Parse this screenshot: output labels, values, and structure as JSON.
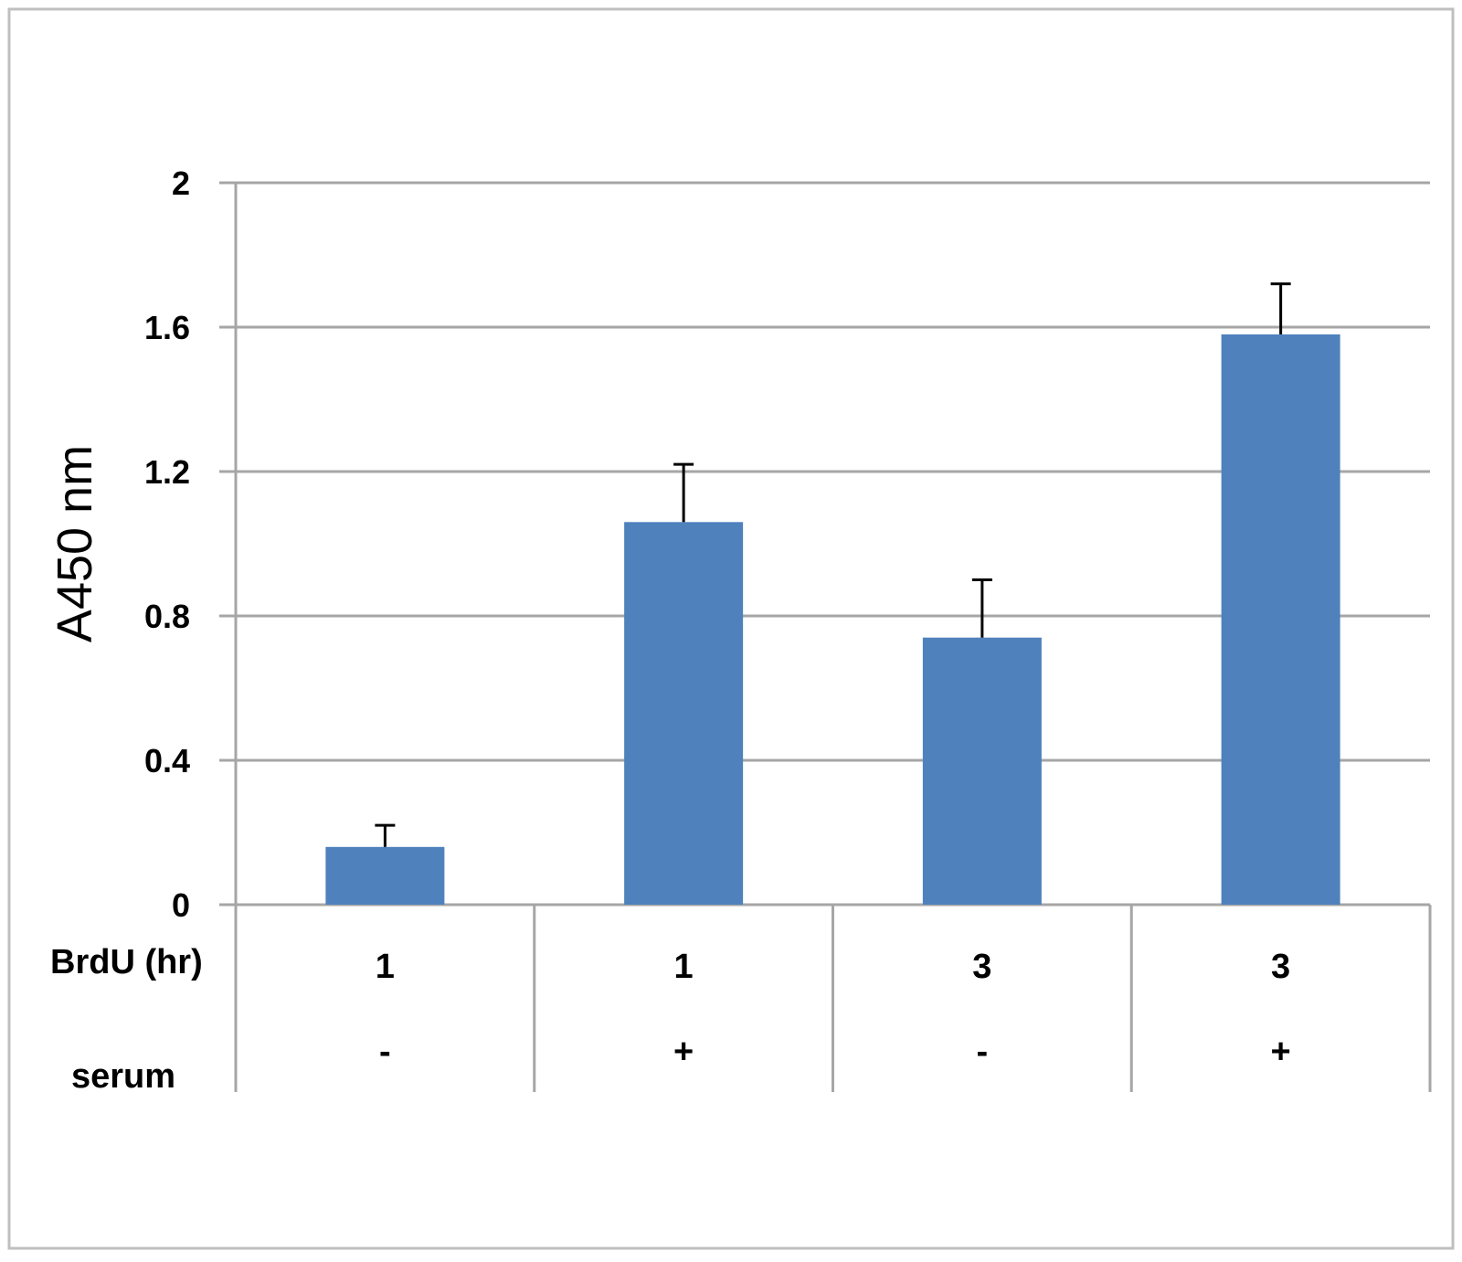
{
  "chart_data": {
    "type": "bar",
    "categories": [
      "1",
      "1",
      "3",
      "3"
    ],
    "category_rows": [
      {
        "label": "BrdU (hr)",
        "values": [
          "1",
          "1",
          "3",
          "3"
        ]
      },
      {
        "label": "serum",
        "values": [
          "-",
          "+",
          "-",
          "+"
        ]
      }
    ],
    "values": [
      0.16,
      1.06,
      0.74,
      1.58
    ],
    "errors": [
      0.06,
      0.16,
      0.16,
      0.14
    ],
    "title": "",
    "xlabel": "",
    "ylabel": "A450 nm",
    "ylim": [
      0,
      2
    ],
    "yticks": [
      "0",
      "0.4",
      "0.8",
      "1.2",
      "1.6",
      "2"
    ],
    "grid": true,
    "bar_color": "#4F81BD",
    "error_bar_color": "#000000",
    "gridline_color": "#A6A6A6"
  }
}
